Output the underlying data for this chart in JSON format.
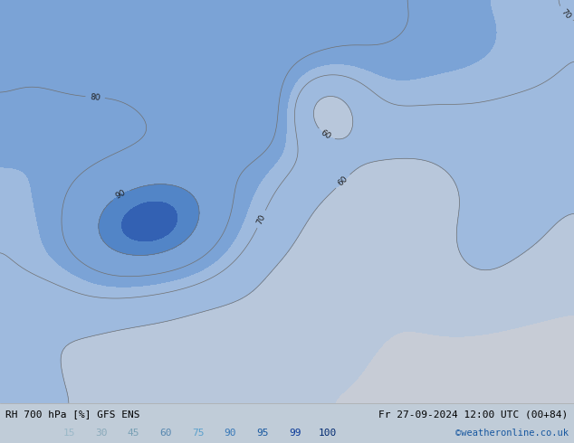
{
  "title_left": "RH 700 hPa [%] GFS ENS",
  "title_right": "Fr 27-09-2024 12:00 UTC (00+84)",
  "credit": "©weatheronline.co.uk",
  "colorbar_levels": [
    15,
    30,
    45,
    60,
    75,
    90,
    95,
    99,
    100
  ],
  "fig_width": 6.34,
  "fig_height": 4.9,
  "dpi": 100,
  "lon_min": 80,
  "lon_max": 180,
  "lat_min": -15,
  "lat_max": 60,
  "fill_colors": [
    "#c2c8cc",
    "#b8bec4",
    "#aab8c8",
    "#98b0c8",
    "#80a8d0",
    "#6090c0",
    "#4070b0",
    "#2050a0",
    "#102880"
  ],
  "contour_color": "#707070",
  "contour_lw": 0.5,
  "coast_color": "#00bb00",
  "coast_lw": 0.8,
  "label_fontsize": 6.5,
  "cb_label_colors": {
    "15": "#9ab0bc",
    "30": "#8aa4b4",
    "45": "#7098ac",
    "60": "#5088a8",
    "75": "#6aaccc",
    "90": "#3878b8",
    "95": "#1858a0",
    "99": "#0838888",
    "100": "#002870"
  },
  "bottom_bg": "#e8e8e8",
  "map_bg": "#c0ccd8"
}
